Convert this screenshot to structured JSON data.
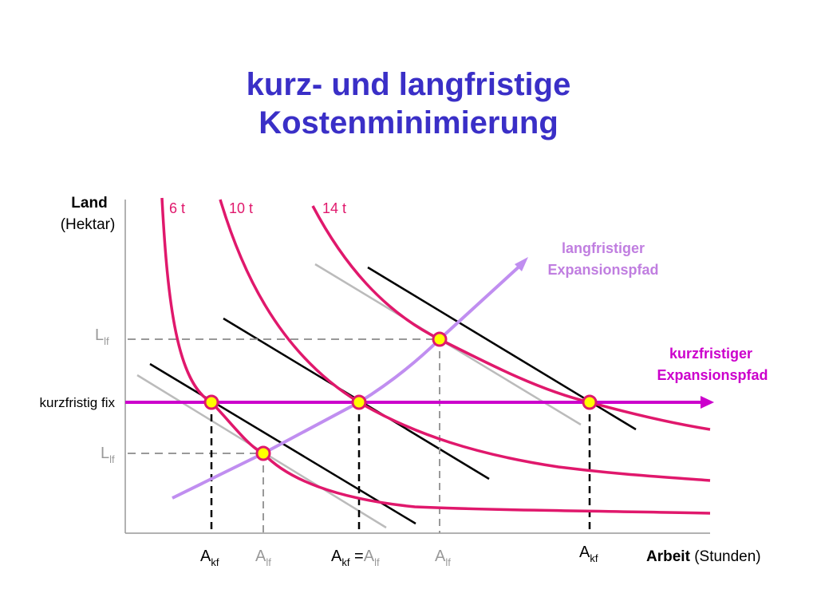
{
  "title": {
    "line1": "kurz- und langfristige",
    "line2": "Kostenminimierung"
  },
  "axes": {
    "y_label_bold": "Land",
    "y_label_unit": "(Hektar)",
    "x_label_bold": "Arbeit",
    "x_label_unit": "(Stunden)"
  },
  "isoquants": [
    {
      "label": "6 t"
    },
    {
      "label": "10 t"
    },
    {
      "label": "14 t"
    }
  ],
  "expansion_paths": {
    "long_run": {
      "line1": "langfristiger",
      "line2": "Expansionspfad"
    },
    "short_run": {
      "line1": "kurzfristiger",
      "line2": "Expansionspfad"
    }
  },
  "short_run_fixed_label": "kurzfristig fix",
  "y_ticks": [
    {
      "main": "L",
      "sub": "lf"
    },
    {
      "main": "L",
      "sub": "lf"
    }
  ],
  "x_ticks": [
    {
      "main": "A",
      "sub": "kf"
    },
    {
      "main": "A",
      "sub": "lf"
    },
    {
      "main": "A",
      "sub": "kf",
      "joiner": " =",
      "main2": "A",
      "sub2": "lf"
    },
    {
      "main": "A",
      "sub": "lf"
    },
    {
      "main": "A",
      "sub": "kf"
    }
  ],
  "colors": {
    "title": "#3a2fc7",
    "isoquant": "#e0186c",
    "short_run_path": "#cc00cc",
    "long_run_path": "#c08ef0",
    "long_run_label": "#c07ee0",
    "isocost": "#000000",
    "isocost_light": "#bbbbbb",
    "point_fill": "#ffff00",
    "point_stroke": "#e0186c",
    "guide": "#999999",
    "tick_lf": "#999999",
    "tick_kf": "#000000"
  }
}
